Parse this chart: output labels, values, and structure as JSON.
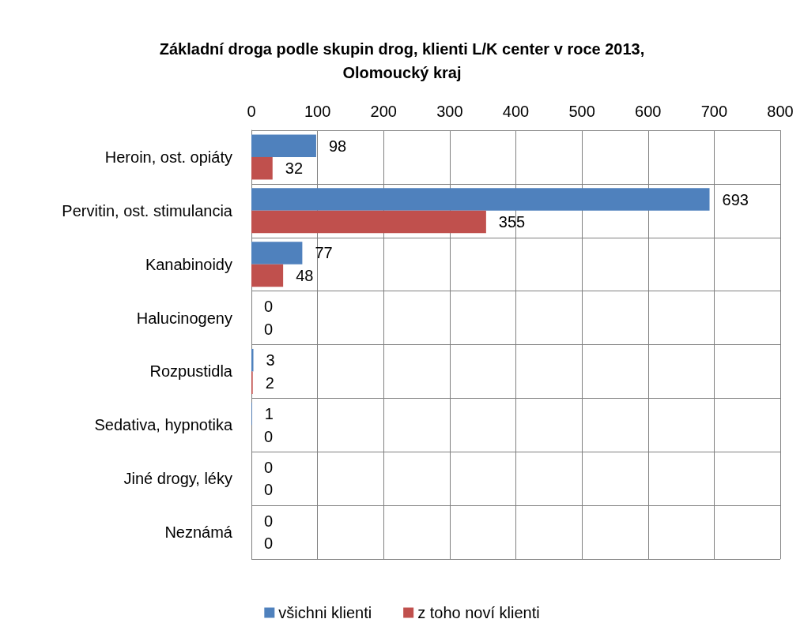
{
  "chart_data": {
    "type": "bar",
    "title": "Základní droga podle skupin drog, klienti L/K center v roce 2013,\nOlomoucký kraj",
    "orientation": "horizontal",
    "categories": [
      "Heroin, ost. opiáty",
      "Pervitin, ost. stimulancia",
      "Kanabinoidy",
      "Halucinogeny",
      "Rozpustidla",
      "Sedativa, hypnotika",
      "Jiné drogy, léky",
      "Neznámá"
    ],
    "series": [
      {
        "name": "všichni klienti",
        "color": "#4f81bd",
        "values": [
          98,
          693,
          77,
          0,
          3,
          1,
          0,
          0
        ]
      },
      {
        "name": "z toho noví klienti",
        "color": "#c0504d",
        "values": [
          32,
          355,
          48,
          0,
          2,
          0,
          0,
          0
        ]
      }
    ],
    "xlim": [
      0,
      800
    ],
    "xticks": [
      0,
      100,
      200,
      300,
      400,
      500,
      600,
      700,
      800
    ],
    "grid": true,
    "legend": "bottom",
    "data_labels": true
  }
}
